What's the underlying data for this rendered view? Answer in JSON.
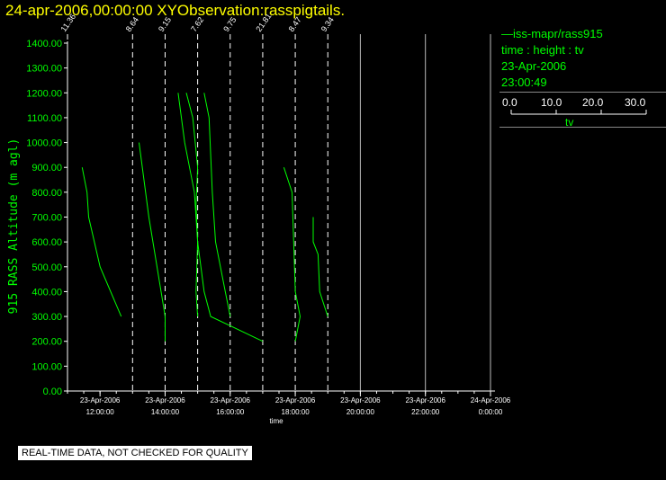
{
  "header": {
    "title": "24-apr-2006,00:00:00  XYObservation:rasspigtails."
  },
  "legend": {
    "series_label": "iss-mapr/rass915",
    "variables": "time : height : tv",
    "date": "23-Apr-2006",
    "time": "23:00:49"
  },
  "color_scale": {
    "ticks": [
      "0.0",
      "10.0",
      "20.0",
      "30.0"
    ],
    "unit": "tv"
  },
  "notice": "REAL-TIME DATA, NOT CHECKED FOR QUALITY",
  "colors": {
    "series": "#00ff00",
    "title": "#ffff00",
    "axis": "#ffffff"
  },
  "chart_data": {
    "type": "line",
    "xlabel": "time",
    "ylabel": "915 RASS Altitude (m agl)",
    "ylim": [
      0,
      1400
    ],
    "xlim_hours": [
      11.0,
      24.0
    ],
    "x_ticks": [
      {
        "hour": 12,
        "date": "23-Apr-2006",
        "time": "12:00:00"
      },
      {
        "hour": 14,
        "date": "23-Apr-2006",
        "time": "14:00:00"
      },
      {
        "hour": 16,
        "date": "23-Apr-2006",
        "time": "16:00:00"
      },
      {
        "hour": 18,
        "date": "23-Apr-2006",
        "time": "18:00:00"
      },
      {
        "hour": 20,
        "date": "23-Apr-2006",
        "time": "20:00:00"
      },
      {
        "hour": 22,
        "date": "23-Apr-2006",
        "time": "22:00:00"
      },
      {
        "hour": 24,
        "date": "24-Apr-2006",
        "time": "0:00:00"
      }
    ],
    "y_ticks": [
      "0.00",
      "100.00",
      "200.00",
      "300.00",
      "400.00",
      "500.00",
      "600.00",
      "700.00",
      "800.00",
      "900.00",
      "1000.00",
      "1100.00",
      "1200.00",
      "1300.00",
      "1400.00"
    ],
    "profiles": [
      {
        "hour": 11.0,
        "label": "11.36"
      },
      {
        "hour": 13.0,
        "label": "8.64"
      },
      {
        "hour": 14.0,
        "label": "9.15"
      },
      {
        "hour": 15.0,
        "label": "7.62"
      },
      {
        "hour": 16.0,
        "label": "9.75"
      },
      {
        "hour": 17.0,
        "label": "21.81"
      },
      {
        "hour": 18.0,
        "label": "8.47"
      },
      {
        "hour": 19.0,
        "label": "9.34"
      }
    ],
    "grid_hours": [
      20,
      22,
      24
    ],
    "series": [
      {
        "points": [
          [
            11.45,
            900
          ],
          [
            11.6,
            800
          ],
          [
            11.65,
            700
          ],
          [
            12.0,
            500
          ],
          [
            12.65,
            300
          ]
        ]
      },
      {
        "points": [
          [
            13.2,
            1000
          ],
          [
            13.5,
            700
          ],
          [
            14.0,
            300
          ],
          [
            14.0,
            200
          ]
        ]
      },
      {
        "points": [
          [
            14.4,
            1200
          ],
          [
            14.6,
            1000
          ],
          [
            14.9,
            800
          ],
          [
            15.0,
            600
          ],
          [
            14.95,
            400
          ],
          [
            15.0,
            300
          ]
        ]
      },
      {
        "points": [
          [
            14.65,
            1200
          ],
          [
            14.85,
            1100
          ],
          [
            15.0,
            900
          ],
          [
            14.95,
            750
          ],
          [
            15.0,
            600
          ],
          [
            15.2,
            400
          ],
          [
            15.4,
            300
          ],
          [
            17.0,
            200
          ]
        ]
      },
      {
        "points": [
          [
            15.2,
            1200
          ],
          [
            15.35,
            1100
          ],
          [
            15.45,
            800
          ],
          [
            15.55,
            600
          ],
          [
            15.85,
            400
          ],
          [
            16.0,
            300
          ]
        ]
      },
      {
        "points": [
          [
            17.65,
            900
          ],
          [
            17.9,
            800
          ],
          [
            18.0,
            400
          ],
          [
            18.15,
            300
          ],
          [
            18.0,
            200
          ]
        ]
      },
      {
        "points": [
          [
            18.55,
            700
          ],
          [
            18.55,
            600
          ],
          [
            18.7,
            550
          ],
          [
            18.75,
            400
          ],
          [
            19.0,
            300
          ]
        ]
      }
    ]
  }
}
